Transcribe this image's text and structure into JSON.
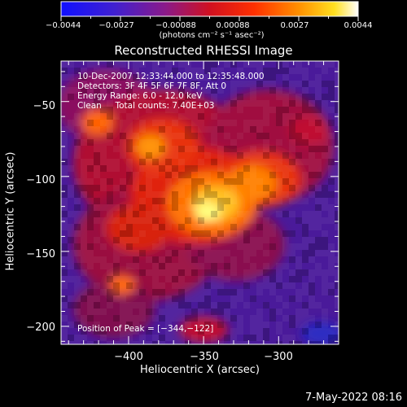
{
  "colorbar": {
    "tick_labels": [
      "−0.0044",
      "−0.0027",
      "−0.00088",
      "0.00088",
      "0.0027",
      "0.0044"
    ],
    "unit_label": "(photons cm⁻² s⁻¹ asec⁻²)",
    "range": [
      -0.0044,
      0.0044
    ],
    "colormap": "blue-purple-red-orange-yellow-white"
  },
  "chart_data": {
    "type": "heatmap",
    "title": "Reconstructed RHESSI Image",
    "xlabel": "Heliocentric X (arcsec)",
    "ylabel": "Heliocentric Y (arcsec)",
    "xlim": [
      -445,
      -260
    ],
    "ylim": [
      -212,
      -23
    ],
    "xticks": [
      -400,
      -350,
      -300
    ],
    "xtick_labels": [
      "−400",
      "−350",
      "−300"
    ],
    "yticks": [
      -50,
      -100,
      -150,
      -200
    ],
    "ytick_labels": [
      "−50",
      "−100",
      "−150",
      "−200"
    ],
    "peak_position": [
      -344,
      -122
    ],
    "annotations": {
      "time_range": "10-Dec-2007 12:33:44.000 to 12:35:48.000",
      "detectors": "Detectors: 3F 4F 5F 6F 7F 8F, Att 0",
      "energy_range": "Energy Range: 6.0 - 12.0 keV",
      "clean_counts": "Clean     Total counts: 7.40E+03",
      "peak": "Position of Peak = [−344,−122]"
    },
    "colors": {
      "background": "#000000",
      "text": "#ffffff"
    }
  },
  "footer": {
    "timestamp": "7-May-2022 08:16"
  }
}
